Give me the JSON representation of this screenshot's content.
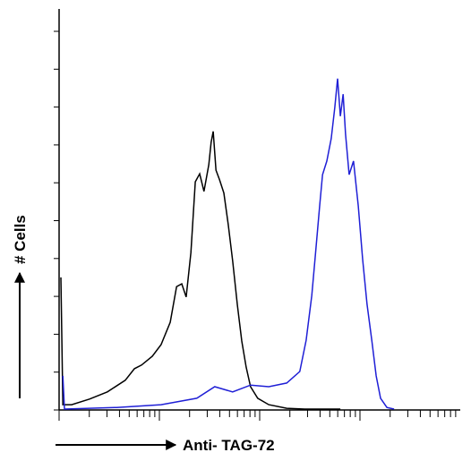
{
  "chart_data": {
    "type": "line",
    "xlabel": "Anti- TAG-72",
    "ylabel": "# Cells",
    "xlim": [
      0,
      100
    ],
    "ylim": [
      0,
      100
    ],
    "series": [
      {
        "color": "#000000",
        "x": [
          0,
          0.5,
          2.7,
          7.2,
          11.7,
          16.2,
          18.5,
          20.3,
          23.0,
          25.2,
          27.5,
          29.1,
          30.4,
          31.5,
          32.7,
          33.8,
          34.9,
          36.0,
          37.2,
          37.8,
          38.3,
          39.0,
          39.9,
          41.0,
          42.1,
          43.2,
          44.4,
          45.5,
          46.6,
          47.7,
          49.5,
          52.3,
          56.8,
          61.3,
          70.3
        ],
        "values": [
          32.9,
          1.1,
          1.1,
          2.5,
          4.3,
          7.2,
          10.1,
          11.0,
          13.2,
          16.1,
          21.7,
          30.6,
          31.3,
          28.0,
          39.1,
          56.8,
          58.8,
          54.4,
          61.1,
          66.7,
          69.4,
          59.7,
          57.3,
          54.0,
          46.1,
          37.1,
          26.0,
          17.0,
          10.5,
          5.6,
          2.7,
          1.1,
          0.2,
          0,
          0
        ]
      },
      {
        "color": "#1f1fd6",
        "x": [
          0.5,
          0.9,
          14.0,
          25.2,
          34.2,
          38.7,
          43.2,
          47.7,
          52.3,
          56.8,
          60.1,
          61.7,
          63.1,
          64.0,
          65.1,
          65.8,
          66.9,
          68.0,
          68.9,
          69.6,
          70.3,
          71.0,
          71.6,
          72.5,
          73.6,
          74.8,
          75.9,
          77.0,
          78.2,
          79.3,
          80.4,
          82.0,
          83.8
        ],
        "values": [
          8.3,
          0,
          0.4,
          1.1,
          2.7,
          5.6,
          4.3,
          6.0,
          5.6,
          6.5,
          9.4,
          17.2,
          28.4,
          38.5,
          50.8,
          58.6,
          62.0,
          67.6,
          75.4,
          82.6,
          73.2,
          78.7,
          68.7,
          58.6,
          62.0,
          50.8,
          37.4,
          26.2,
          17.2,
          8.3,
          2.7,
          0.4,
          0
        ]
      }
    ]
  }
}
